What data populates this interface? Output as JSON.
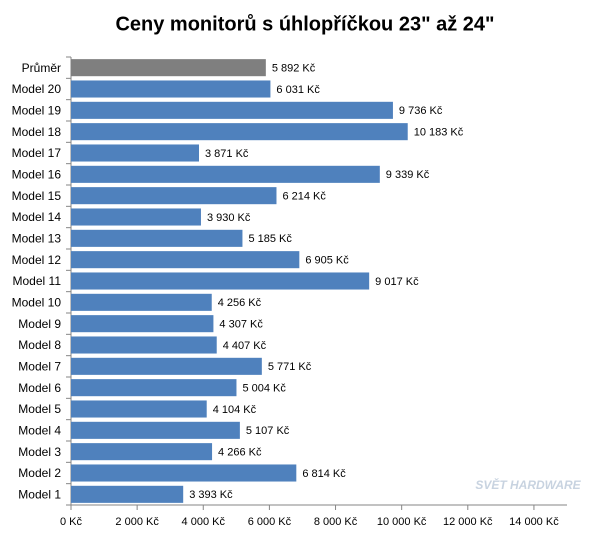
{
  "chart_data": {
    "type": "hbar",
    "title": "Ceny monitorů s úhlopříčkou 23\" až 24\"",
    "categories": [
      "Průměr",
      "Model 20",
      "Model 19",
      "Model 18",
      "Model 17",
      "Model 16",
      "Model 15",
      "Model 14",
      "Model 13",
      "Model 12",
      "Model 11",
      "Model 10",
      "Model 9",
      "Model 8",
      "Model 7",
      "Model 6",
      "Model 5",
      "Model 4",
      "Model 3",
      "Model 2",
      "Model 1"
    ],
    "values": [
      5892,
      6031,
      9736,
      10183,
      3871,
      9339,
      6214,
      3930,
      5185,
      6905,
      9017,
      4256,
      4307,
      4407,
      5771,
      5004,
      4104,
      5107,
      4266,
      6814,
      3393
    ],
    "value_labels": [
      "5 892 Kč",
      "6 031 Kč",
      "9 736 Kč",
      "10 183 Kč",
      "3 871 Kč",
      "9 339 Kč",
      "6 214 Kč",
      "3 930 Kč",
      "5 185 Kč",
      "6 905 Kč",
      "9 017 Kč",
      "4 256 Kč",
      "4 307 Kč",
      "4 407 Kč",
      "5 771 Kč",
      "5 004 Kč",
      "4 104 Kč",
      "5 107 Kč",
      "4 266 Kč",
      "6 814 Kč",
      "3 393 Kč"
    ],
    "colors": [
      "#7f7f7f",
      "#4f81bd",
      "#4f81bd",
      "#4f81bd",
      "#4f81bd",
      "#4f81bd",
      "#4f81bd",
      "#4f81bd",
      "#4f81bd",
      "#4f81bd",
      "#4f81bd",
      "#4f81bd",
      "#4f81bd",
      "#4f81bd",
      "#4f81bd",
      "#4f81bd",
      "#4f81bd",
      "#4f81bd",
      "#4f81bd",
      "#4f81bd",
      "#4f81bd"
    ],
    "xlim": [
      0,
      15000
    ],
    "xticks": [
      {
        "value": 0,
        "label": "0 Kč"
      },
      {
        "value": 2000,
        "label": "2 000 Kč"
      },
      {
        "value": 4000,
        "label": "4 000 Kč"
      },
      {
        "value": 6000,
        "label": "6 000 Kč"
      },
      {
        "value": 8000,
        "label": "8 000 Kč"
      },
      {
        "value": 10000,
        "label": "10 000 Kč"
      },
      {
        "value": 12000,
        "label": "12 000 Kč"
      },
      {
        "value": 14000,
        "label": "14 000 Kč"
      }
    ],
    "grid": false,
    "watermark": "SVĚT HARDWARE"
  }
}
